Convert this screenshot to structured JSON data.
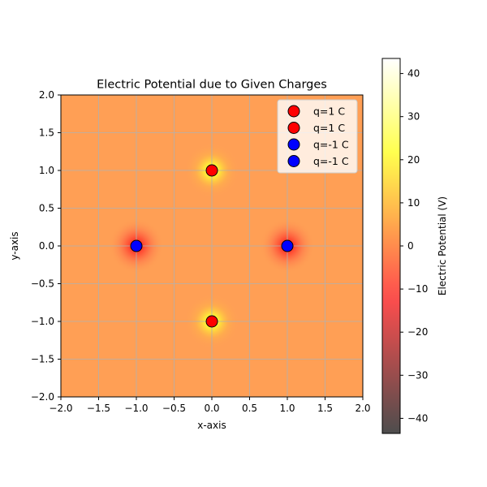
{
  "chart_data": {
    "type": "heatmap",
    "title": "Electric Potential due to Given Charges",
    "xlabel": "x-axis",
    "ylabel": "y-axis",
    "xlim": [
      -2.0,
      2.0
    ],
    "ylim": [
      -2.0,
      2.0
    ],
    "xticks": [
      -2.0,
      -1.5,
      -1.0,
      -0.5,
      0.0,
      0.5,
      1.0,
      1.5,
      2.0
    ],
    "yticks": [
      -2.0,
      -1.5,
      -1.0,
      -0.5,
      0.0,
      0.5,
      1.0,
      1.5,
      2.0
    ],
    "grid": true,
    "legend_position": "top-right",
    "charges": [
      {
        "label": "q=1 C",
        "x": 0.0,
        "y": 1.0,
        "q": 1,
        "color": "#ff0000"
      },
      {
        "label": "q=1 C",
        "x": 0.0,
        "y": -1.0,
        "q": 1,
        "color": "#ff0000"
      },
      {
        "label": "q=-1 C",
        "x": -1.0,
        "y": 0.0,
        "q": -1,
        "color": "#0000ff"
      },
      {
        "label": "q=-1 C",
        "x": 1.0,
        "y": 0.0,
        "q": -1,
        "color": "#0000ff"
      }
    ],
    "colorbar": {
      "label": "Electric Potential (V)",
      "range": [
        -43.5,
        43.5
      ],
      "ticks": [
        -40,
        -30,
        -20,
        -10,
        0,
        10,
        20,
        30,
        40
      ],
      "colormap": "hot",
      "alpha": 0.7
    }
  }
}
